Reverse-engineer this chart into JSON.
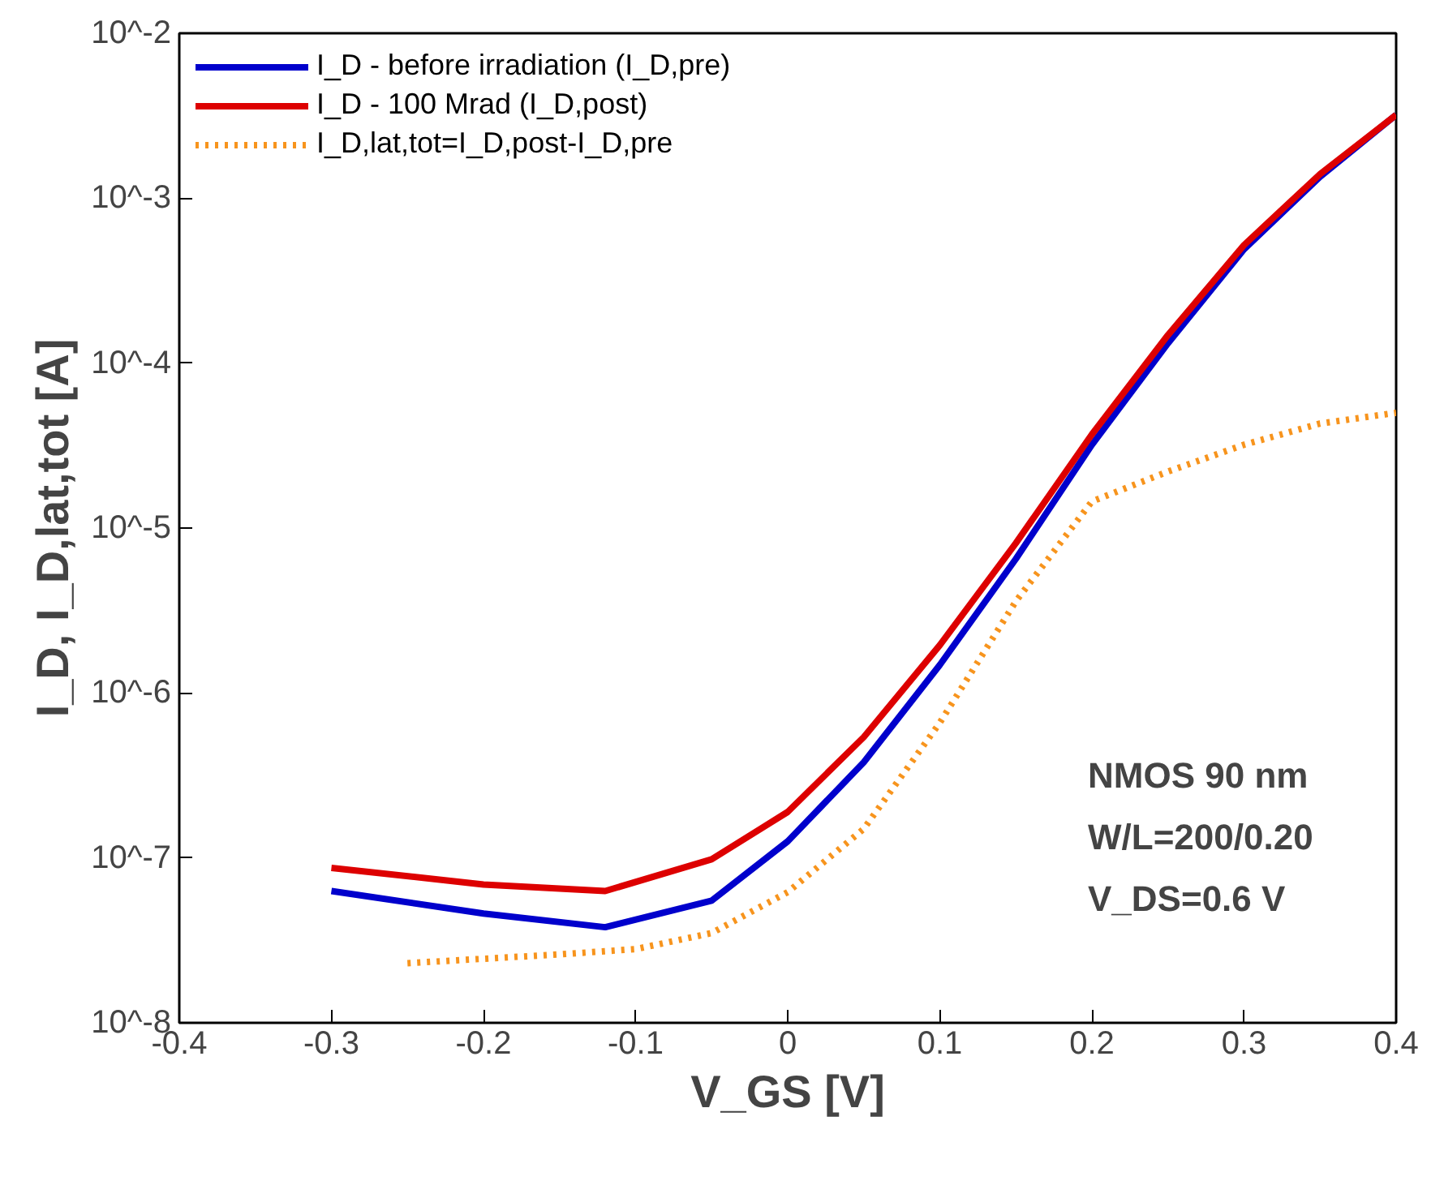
{
  "chart_data": {
    "type": "line",
    "xlabel": "V_GS [V]",
    "ylabel": "I_D, I_D,lat,tot [A]",
    "log": "y",
    "xlim": [
      -0.4,
      0.4
    ],
    "ylim": [
      1e-08,
      0.01
    ],
    "xticks": [
      -0.4,
      -0.3,
      -0.2,
      -0.1,
      0,
      0.1,
      0.2,
      0.3,
      0.4
    ],
    "yticks": [
      {
        "value": 1e-08,
        "label": "10^-8"
      },
      {
        "value": 1e-07,
        "label": "10^-7"
      },
      {
        "value": 1e-06,
        "label": "10^-6"
      },
      {
        "value": 1e-05,
        "label": "10^-5"
      },
      {
        "value": 0.0001,
        "label": "10^-4"
      },
      {
        "value": 0.001,
        "label": "10^-3"
      },
      {
        "value": 0.01,
        "label": "10^-2"
      }
    ],
    "grid": false,
    "legend": "top left",
    "annotations": [
      "NMOS 90 nm",
      "W/L=200/0.20",
      "V_DS=0.6 V"
    ],
    "series": [
      {
        "name": "I_D - before irradiation (I_D,pre)",
        "color": "#0000cc",
        "line_style": "solid",
        "x": [
          -0.3,
          -0.2,
          -0.12,
          -0.05,
          0,
          0.05,
          0.1,
          0.15,
          0.2,
          0.25,
          0.3,
          0.35,
          0.4
        ],
        "values": [
          6.3e-08,
          4.6e-08,
          3.8e-08,
          5.5e-08,
          1.26e-07,
          3.8e-07,
          1.48e-06,
          6.5e-06,
          3.2e-05,
          0.000132,
          0.00049,
          0.00135,
          0.0032
        ]
      },
      {
        "name": "I_D - 100 Mrad (I_D,post)",
        "color": "#dd0000",
        "line_style": "solid",
        "x": [
          -0.3,
          -0.2,
          -0.12,
          -0.05,
          0,
          0.05,
          0.1,
          0.15,
          0.2,
          0.25,
          0.3,
          0.35,
          0.4
        ],
        "values": [
          8.7e-08,
          6.9e-08,
          6.3e-08,
          9.8e-08,
          1.9e-07,
          5.4e-07,
          1.95e-06,
          8.1e-06,
          3.7e-05,
          0.000148,
          0.00052,
          0.0014,
          0.0032
        ]
      },
      {
        "name": "I_D,lat,tot=I_D,post-I_D,pre",
        "color": "#f7941d",
        "line_style": "dotted",
        "x": [
          -0.25,
          -0.15,
          -0.1,
          -0.05,
          0,
          0.05,
          0.1,
          0.15,
          0.2,
          0.25,
          0.3,
          0.35,
          0.4
        ],
        "values": [
          2.3e-08,
          2.6e-08,
          2.8e-08,
          3.5e-08,
          6.2e-08,
          1.5e-07,
          6.6e-07,
          3.6e-06,
          1.45e-05,
          2.2e-05,
          3.2e-05,
          4.3e-05,
          5e-05
        ]
      }
    ]
  }
}
